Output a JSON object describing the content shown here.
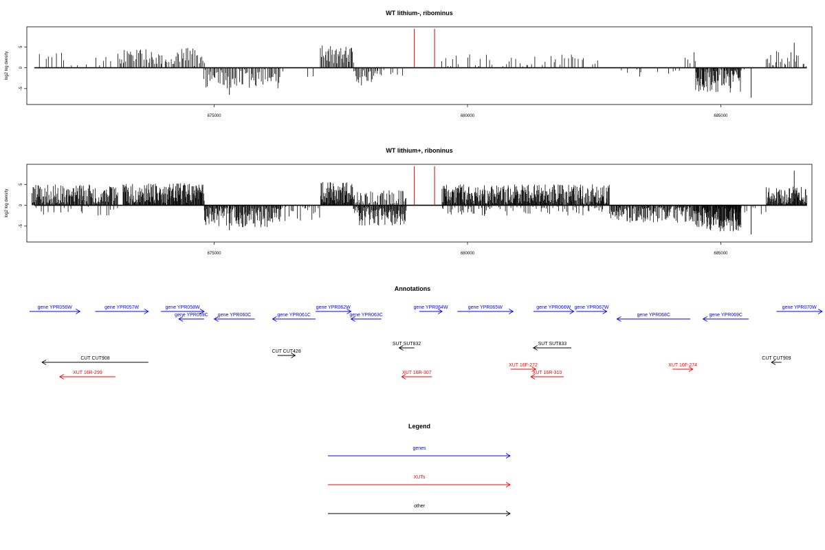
{
  "chart_data": [
    {
      "type": "bar",
      "title": "WT lithium-, ribominus",
      "ylabel": "log2 log density",
      "xlim": [
        671300,
        686800
      ],
      "ylim": [
        -8,
        9
      ],
      "xticks": [
        675000,
        680000,
        685000
      ],
      "xtick_labels": [
        "675000",
        "680000",
        "685000"
      ],
      "yticks": [
        5,
        0,
        -5
      ],
      "ytick_labels": [
        "5",
        "0",
        "-5"
      ],
      "markers": [
        678950,
        679350
      ],
      "marker_color": "#e00000",
      "segments": [
        {
          "from": 671400,
          "to": 673000,
          "sign": 1,
          "mean": 1.8,
          "amp": 1.8,
          "step": 70,
          "gap": 0.35
        },
        {
          "from": 673100,
          "to": 674800,
          "sign": 1,
          "mean": 2.6,
          "amp": 2.2,
          "step": 25,
          "gap": 0.05
        },
        {
          "from": 674800,
          "to": 676300,
          "sign": -1,
          "mean": 2.6,
          "amp": 2.4,
          "step": 22,
          "gap": 0.05
        },
        {
          "from": 676300,
          "to": 677100,
          "sign": -1,
          "mean": 1.2,
          "amp": 1.8,
          "step": 90,
          "gap": 0.6
        },
        {
          "from": 677100,
          "to": 677750,
          "sign": 1,
          "mean": 3.2,
          "amp": 2.2,
          "step": 18,
          "gap": 0.05
        },
        {
          "from": 677750,
          "to": 678300,
          "sign": -1,
          "mean": 2.4,
          "amp": 2.2,
          "step": 22,
          "gap": 0.1
        },
        {
          "from": 678300,
          "to": 678900,
          "sign": -1,
          "mean": 0.8,
          "amp": 1.2,
          "step": 80,
          "gap": 0.6
        },
        {
          "from": 679500,
          "to": 682600,
          "sign": 1,
          "mean": 1.6,
          "amp": 1.6,
          "step": 55,
          "gap": 0.3
        },
        {
          "from": 682600,
          "to": 684200,
          "sign": -1,
          "mean": 1.2,
          "amp": 1.8,
          "step": 60,
          "gap": 0.45
        },
        {
          "from": 684300,
          "to": 684500,
          "sign": 1,
          "mean": 2.5,
          "amp": 1.5,
          "step": 40,
          "gap": 0.2
        },
        {
          "from": 684500,
          "to": 685400,
          "sign": -1,
          "mean": 3.2,
          "amp": 2.8,
          "step": 12,
          "gap": 0.03
        },
        {
          "from": 685400,
          "to": 685900,
          "sign": -1,
          "mean": 0.5,
          "amp": 0.8,
          "step": 90,
          "gap": 0.7
        },
        {
          "from": 685900,
          "to": 686700,
          "sign": 1,
          "mean": 2.0,
          "amp": 2.0,
          "step": 30,
          "gap": 0.2
        }
      ],
      "peaks": [
        {
          "x": 686450,
          "y": 6.0
        },
        {
          "x": 675300,
          "y": -6.5
        },
        {
          "x": 685600,
          "y": -7.2
        }
      ]
    },
    {
      "type": "bar",
      "title": "WT lithium+, riboninus",
      "ylabel": "log2 log density",
      "xlim": [
        671300,
        686800
      ],
      "ylim": [
        -8,
        9
      ],
      "xticks": [
        675000,
        680000,
        685000
      ],
      "xtick_labels": [
        "675000",
        "680000",
        "685000"
      ],
      "yticks": [
        5,
        0,
        -5
      ],
      "ytick_labels": [
        "5",
        "0",
        "-5"
      ],
      "markers": [
        678950,
        679350
      ],
      "marker_color": "#e00000",
      "segments": [
        {
          "from": 671400,
          "to": 673100,
          "sign": 1,
          "mean": 2.6,
          "amp": 2.4,
          "step": 12,
          "gap": 0.03
        },
        {
          "from": 671400,
          "to": 673100,
          "sign": -1,
          "mean": 1.0,
          "amp": 1.6,
          "step": 40,
          "gap": 0.5
        },
        {
          "from": 673200,
          "to": 674800,
          "sign": 1,
          "mean": 2.9,
          "amp": 2.4,
          "step": 10,
          "gap": 0.02
        },
        {
          "from": 674800,
          "to": 676300,
          "sign": -1,
          "mean": 2.7,
          "amp": 2.6,
          "step": 12,
          "gap": 0.03
        },
        {
          "from": 676300,
          "to": 677100,
          "sign": -1,
          "mean": 1.6,
          "amp": 2.2,
          "step": 30,
          "gap": 0.25
        },
        {
          "from": 677100,
          "to": 677750,
          "sign": 1,
          "mean": 3.0,
          "amp": 2.6,
          "step": 10,
          "gap": 0.03
        },
        {
          "from": 677750,
          "to": 678800,
          "sign": -1,
          "mean": 2.5,
          "amp": 2.5,
          "step": 12,
          "gap": 0.04
        },
        {
          "from": 677750,
          "to": 678800,
          "sign": 1,
          "mean": 1.8,
          "amp": 1.8,
          "step": 20,
          "gap": 0.15
        },
        {
          "from": 679500,
          "to": 682800,
          "sign": 1,
          "mean": 2.4,
          "amp": 2.6,
          "step": 10,
          "gap": 0.04
        },
        {
          "from": 679500,
          "to": 682800,
          "sign": -1,
          "mean": 1.0,
          "amp": 1.6,
          "step": 25,
          "gap": 0.4
        },
        {
          "from": 682800,
          "to": 684500,
          "sign": -1,
          "mean": 2.0,
          "amp": 2.2,
          "step": 12,
          "gap": 0.05
        },
        {
          "from": 684500,
          "to": 685400,
          "sign": -1,
          "mean": 3.3,
          "amp": 3.0,
          "step": 8,
          "gap": 0.02
        },
        {
          "from": 685400,
          "to": 685900,
          "sign": -1,
          "mean": 1.0,
          "amp": 1.2,
          "step": 40,
          "gap": 0.5
        },
        {
          "from": 685900,
          "to": 686700,
          "sign": 1,
          "mean": 2.3,
          "amp": 2.2,
          "step": 10,
          "gap": 0.05
        }
      ],
      "peaks": [
        {
          "x": 686450,
          "y": 8.3
        },
        {
          "x": 675300,
          "y": -6.0
        },
        {
          "x": 685600,
          "y": -7.0
        }
      ]
    }
  ],
  "annotations": {
    "title": "Annotations",
    "colors": {
      "gene": "#0000ff",
      "xut": "#ff0000",
      "other": "#000000"
    },
    "features": [
      {
        "label": "gene YPR056W",
        "type": "gene",
        "start": 671300,
        "end": 672350,
        "dir": 1,
        "row": 0
      },
      {
        "label": "gene YPR057W",
        "type": "gene",
        "start": 672650,
        "end": 673700,
        "dir": 1,
        "row": 0
      },
      {
        "label": "gene YPR058W",
        "type": "gene",
        "start": 673950,
        "end": 674800,
        "dir": 1,
        "row": 0
      },
      {
        "label": "gene YPR059C",
        "type": "gene",
        "start": 674300,
        "end": 674800,
        "dir": -1,
        "row": 1
      },
      {
        "label": "gene YPR060C",
        "type": "gene",
        "start": 675000,
        "end": 675800,
        "dir": -1,
        "row": 1
      },
      {
        "label": "gene YPR061C",
        "type": "gene",
        "start": 676150,
        "end": 677000,
        "dir": -1,
        "row": 1
      },
      {
        "label": "gene YPR062W",
        "type": "gene",
        "start": 677000,
        "end": 677700,
        "dir": 1,
        "row": 0
      },
      {
        "label": "gene YPR063C",
        "type": "gene",
        "start": 677700,
        "end": 678300,
        "dir": -1,
        "row": 1
      },
      {
        "label": "gene YPR064W",
        "type": "gene",
        "start": 679050,
        "end": 679500,
        "dir": 1,
        "row": 0
      },
      {
        "label": "gene YPR065W",
        "type": "gene",
        "start": 679800,
        "end": 680900,
        "dir": 1,
        "row": 0
      },
      {
        "label": "gene YPR066W",
        "type": "gene",
        "start": 681300,
        "end": 682100,
        "dir": 1,
        "row": 0
      },
      {
        "label": "gene YPR067W",
        "type": "gene",
        "start": 682150,
        "end": 682750,
        "dir": 1,
        "row": 0
      },
      {
        "label": "gene YPR068C",
        "type": "gene",
        "start": 682950,
        "end": 684400,
        "dir": -1,
        "row": 1
      },
      {
        "label": "gene YPR069C",
        "type": "gene",
        "start": 684650,
        "end": 685550,
        "dir": -1,
        "row": 1
      },
      {
        "label": "gene YPR070W",
        "type": "gene",
        "start": 686100,
        "end": 687400,
        "dir": 1,
        "row": 0
      },
      {
        "label": "SUT SUT832",
        "type": "other",
        "start": 678650,
        "end": 678950,
        "dir": -1,
        "row": 3
      },
      {
        "label": "SUT SUT833",
        "type": "other",
        "start": 681300,
        "end": 682050,
        "dir": -1,
        "row": 3
      },
      {
        "label": "CUT CUT428",
        "type": "other",
        "start": 676250,
        "end": 676600,
        "dir": 1,
        "row": 4
      },
      {
        "label": "CUT CUT908",
        "type": "other",
        "start": 671600,
        "end": 673700,
        "dir": -1,
        "row": 5
      },
      {
        "label": "CUT CUT909",
        "type": "other",
        "start": 686000,
        "end": 686200,
        "dir": -1,
        "row": 5
      },
      {
        "label": "XUT 16F-272",
        "type": "xut",
        "start": 680850,
        "end": 681350,
        "dir": 1,
        "row": 6
      },
      {
        "label": "XUT 16F-274",
        "type": "xut",
        "start": 684050,
        "end": 684450,
        "dir": 1,
        "row": 6
      },
      {
        "label": "XUT 16R-299",
        "type": "xut",
        "start": 671950,
        "end": 673050,
        "dir": -1,
        "row": 7
      },
      {
        "label": "XUT 16R-307",
        "type": "xut",
        "start": 678700,
        "end": 679300,
        "dir": -1,
        "row": 7
      },
      {
        "label": "XUT 16R-310",
        "type": "xut",
        "start": 681250,
        "end": 681900,
        "dir": -1,
        "row": 7
      }
    ]
  },
  "legend": {
    "title": "Legend",
    "items": [
      {
        "label": "genes",
        "type": "gene"
      },
      {
        "label": "XUTs",
        "type": "xut"
      },
      {
        "label": "other",
        "type": "other"
      }
    ]
  }
}
